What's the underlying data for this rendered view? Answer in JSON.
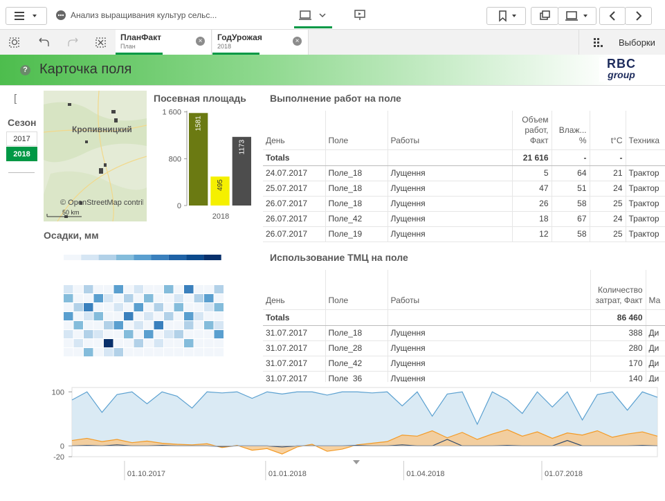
{
  "toolbar": {
    "app_title": "Анализ выращивания культур сельс..."
  },
  "selections": [
    {
      "field": "ПланФакт",
      "value": "План"
    },
    {
      "field": "ГодУрожая",
      "value": "2018"
    }
  ],
  "selections_button": "Выборки",
  "header": {
    "title": "Карточка поля",
    "logo_top": "RBC",
    "logo_bottom": "group"
  },
  "season": {
    "label": "Сезон",
    "years": [
      "2017",
      "2018"
    ],
    "selected": 1
  },
  "map": {
    "city": "Кропивницкий",
    "attribution": "© OpenStreetMap contributors",
    "scale": "50 km"
  },
  "sown_area": {
    "type": "bar",
    "title": "Посевная площадь",
    "categories": [
      "2018"
    ],
    "series": [
      {
        "color": "#6b7a12",
        "values": [
          1581
        ]
      },
      {
        "color": "#f5f000",
        "values": [
          495
        ]
      },
      {
        "color": "#4d4d4d",
        "values": [
          1173
        ]
      }
    ],
    "ylim": [
      0,
      1620
    ],
    "yticks": [
      0,
      800,
      {
        "value": 1600,
        "label": "1 600"
      }
    ]
  },
  "works": {
    "title": "Выполнение работ на поле",
    "columns": [
      "День",
      "Поле",
      "Работы",
      "Объем работ, Факт",
      "Влаж... %",
      "t°C",
      "Техника"
    ],
    "totals": {
      "label": "Totals",
      "volume": "21 616",
      "humidity": "-",
      "temp": "-"
    },
    "rows": [
      [
        "24.07.2017",
        "Поле_18",
        "Лущення",
        5,
        64,
        21,
        "Трактор"
      ],
      [
        "25.07.2017",
        "Поле_18",
        "Лущення",
        47,
        51,
        24,
        "Трактор"
      ],
      [
        "26.07.2017",
        "Поле_18",
        "Лущення",
        26,
        58,
        25,
        "Трактор"
      ],
      [
        "26.07.2017",
        "Поле_42",
        "Лущення",
        18,
        67,
        24,
        "Трактор"
      ],
      [
        "26.07.2017",
        "Поле_19",
        "Лущення",
        12,
        58,
        25,
        "Трактор"
      ]
    ]
  },
  "tmc": {
    "title": "Использование ТМЦ на поле",
    "columns": [
      "День",
      "Поле",
      "Работы",
      "Количество затрат, Факт",
      "Ма"
    ],
    "totals": {
      "label": "Totals",
      "quantity": "86 460"
    },
    "rows": [
      [
        "31.07.2017",
        "Поле_18",
        "Лущення",
        388,
        "Ди"
      ],
      [
        "31.07.2017",
        "Поле_28",
        "Лущення",
        280,
        "Ди"
      ],
      [
        "31.07.2017",
        "Поле_42",
        "Лущення",
        170,
        "Ди"
      ],
      [
        "31.07.2017",
        "Поле_36",
        "Лущення",
        140,
        "Ди"
      ]
    ]
  },
  "rainfall": {
    "type": "heatmap",
    "title": "Осадки, мм",
    "clim": [
      0,
      8
    ],
    "scale_colors": [
      "#f2f6fb",
      "#d6e6f4",
      "#b2d1e8",
      "#84bcdb",
      "#5a9fcf",
      "#3a80bd",
      "#1f62a6",
      "#0b4a8c",
      "#08306b"
    ],
    "values": [
      [
        1,
        0,
        2,
        0,
        0,
        4,
        0,
        1,
        0,
        0,
        3,
        0,
        5,
        0,
        0,
        2
      ],
      [
        3,
        0,
        0,
        4,
        1,
        0,
        2,
        0,
        3,
        0,
        0,
        1,
        0,
        2,
        4,
        0
      ],
      [
        0,
        2,
        5,
        0,
        0,
        1,
        0,
        4,
        0,
        2,
        0,
        3,
        0,
        0,
        1,
        3
      ],
      [
        4,
        0,
        1,
        3,
        0,
        0,
        5,
        0,
        1,
        0,
        2,
        0,
        4,
        1,
        0,
        0
      ],
      [
        0,
        3,
        0,
        0,
        2,
        4,
        0,
        1,
        0,
        5,
        0,
        0,
        2,
        0,
        3,
        1
      ],
      [
        1,
        0,
        2,
        1,
        0,
        0,
        3,
        0,
        4,
        0,
        1,
        2,
        0,
        0,
        0,
        4
      ],
      [
        0,
        1,
        0,
        0,
        8,
        0,
        0,
        2,
        0,
        1,
        0,
        0,
        3,
        0,
        0,
        0
      ],
      [
        0,
        0,
        3,
        0,
        1,
        2,
        0,
        0,
        0,
        0,
        0,
        0,
        0,
        0,
        0,
        0
      ]
    ]
  },
  "timeline": {
    "type": "line",
    "xlim": [
      0,
      39
    ],
    "ylim": [
      -20,
      108
    ],
    "yticks": [
      -20,
      0,
      100
    ],
    "xticks": [
      {
        "value": 3.5,
        "label": "01.10.2017"
      },
      {
        "value": 12.9,
        "label": "01.01.2018"
      },
      {
        "value": 22.1,
        "label": "01.04.2018"
      },
      {
        "value": 31.3,
        "label": "01.07.2018"
      }
    ],
    "series": [
      {
        "color": "#5aa0d0",
        "fill": "#d3e6f2",
        "values": [
          85,
          100,
          62,
          95,
          100,
          78,
          100,
          92,
          70,
          100,
          98,
          100,
          88,
          100,
          96,
          100,
          100,
          94,
          100,
          100,
          98,
          100,
          74,
          100,
          55,
          96,
          100,
          40,
          100,
          85,
          60,
          100,
          72,
          100,
          48,
          95,
          100,
          66,
          100,
          90
        ]
      },
      {
        "color": "#f39a25",
        "fill": "#f6c98f",
        "values": [
          10,
          14,
          8,
          12,
          6,
          9,
          5,
          3,
          2,
          4,
          -3,
          1,
          -8,
          -5,
          -15,
          -2,
          3,
          -10,
          -6,
          2,
          5,
          8,
          20,
          18,
          28,
          15,
          25,
          12,
          22,
          30,
          18,
          26,
          14,
          24,
          20,
          28,
          16,
          22,
          26,
          18
        ]
      },
      {
        "color": "#2f4a6d",
        "values": [
          0,
          1,
          0,
          2,
          0,
          0,
          1,
          0,
          0,
          0,
          -1,
          0,
          0,
          0,
          -2,
          0,
          0,
          0,
          0,
          1,
          0,
          0,
          2,
          0,
          0,
          12,
          0,
          0,
          0,
          1,
          0,
          0,
          0,
          10,
          0,
          0,
          0,
          0,
          1,
          0
        ]
      }
    ]
  }
}
